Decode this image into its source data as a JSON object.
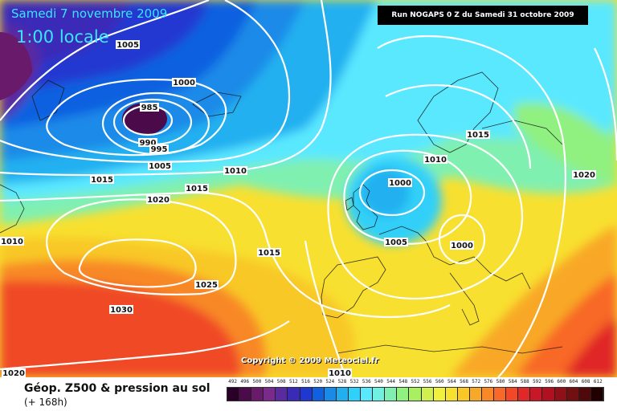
{
  "header": {
    "date": "Samedi 7 novembre 2009",
    "time": "1:00 locale",
    "run": "Run NOGAPS 0 Z du Samedi 31 octobre 2009"
  },
  "footer": {
    "caption": "Géop. Z500 & pression au sol",
    "subcaption": "(+ 168h)",
    "copyright": "Copyright © 2009 Meteociel.fr"
  },
  "legend": {
    "values": [
      "492",
      "496",
      "500",
      "504",
      "508",
      "512",
      "516",
      "520",
      "524",
      "528",
      "532",
      "536",
      "540",
      "544",
      "548",
      "552",
      "556",
      "560",
      "564",
      "568",
      "572",
      "576",
      "580",
      "584",
      "588",
      "592",
      "596",
      "600",
      "604",
      "608",
      "612"
    ],
    "colors": [
      "#2a0028",
      "#4b0a4a",
      "#6a1a6a",
      "#7a2a8a",
      "#5a2aa0",
      "#3a2ab8",
      "#2038d0",
      "#1060e0",
      "#1a8ae8",
      "#20b0f0",
      "#30d0f8",
      "#5ae8ff",
      "#70f0e0",
      "#80f0b0",
      "#90f080",
      "#a8f060",
      "#d0f050",
      "#f0f040",
      "#f8e030",
      "#f8c828",
      "#f8a828",
      "#f88828",
      "#f86828",
      "#f04828",
      "#e02828",
      "#c81828",
      "#b01020",
      "#901018",
      "#701010",
      "#500808",
      "#200000"
    ]
  },
  "isobars": [
    "985",
    "990",
    "995",
    "1000",
    "1005",
    "1005",
    "1010",
    "1015",
    "1015",
    "1020",
    "1025",
    "1030",
    "1010",
    "1000",
    "1005",
    "1010",
    "1000",
    "1015",
    "1020",
    "1010",
    "1020",
    "1000"
  ]
}
